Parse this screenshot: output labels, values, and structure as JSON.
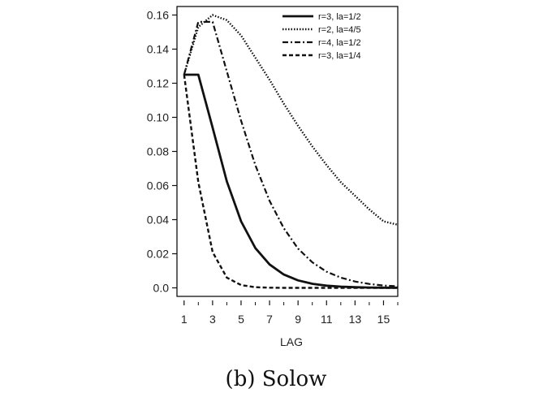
{
  "caption": "(b) Solow",
  "chart_data": {
    "type": "line",
    "xlabel": "LAG",
    "ylabel": "",
    "xlim": [
      0.5,
      16
    ],
    "ylim": [
      -0.005,
      0.165
    ],
    "x_ticks": [
      "1",
      "3",
      "5",
      "7",
      "9",
      "11",
      "13",
      "15"
    ],
    "x_tick_values": [
      1,
      3,
      5,
      7,
      9,
      11,
      13,
      15
    ],
    "minor_x_ticks": [
      2,
      4,
      6,
      8,
      10,
      12,
      14,
      16
    ],
    "y_ticks": [
      "0.0",
      "0.02",
      "0.04",
      "0.06",
      "0.08",
      "0.10",
      "0.12",
      "0.14",
      "0.16"
    ],
    "y_tick_values": [
      0.0,
      0.02,
      0.04,
      0.06,
      0.08,
      0.1,
      0.12,
      0.14,
      0.16
    ],
    "grid": false,
    "legend_position": "top-right",
    "series": [
      {
        "name": "r=3, la=1/2",
        "style": "solid",
        "x": [
          1,
          2,
          3,
          4,
          5,
          6,
          7,
          8,
          9,
          10,
          11,
          12,
          13,
          14,
          15,
          16
        ],
        "y": [
          0.125,
          0.125,
          0.094,
          0.0625,
          0.039,
          0.0234,
          0.0137,
          0.0078,
          0.0044,
          0.0024,
          0.0013,
          0.0007,
          0.0004,
          0.0002,
          0.0001,
          0.0001
        ]
      },
      {
        "name": "r=2, la=4/5",
        "style": "dotted",
        "x": [
          1,
          2,
          3,
          4,
          5,
          6,
          7,
          8,
          9,
          10,
          11,
          12,
          13,
          14,
          15,
          16
        ],
        "y": [
          0.125,
          0.153,
          0.16,
          0.157,
          0.148,
          0.135,
          0.122,
          0.108,
          0.095,
          0.083,
          0.072,
          0.062,
          0.054,
          0.046,
          0.039,
          0.037
        ]
      },
      {
        "name": "r=4, la=1/2",
        "style": "dashdot",
        "x": [
          1,
          2,
          3,
          4,
          5,
          6,
          7,
          8,
          9,
          10,
          11,
          12,
          13,
          14,
          15,
          16
        ],
        "y": [
          0.125,
          0.156,
          0.156,
          0.127,
          0.098,
          0.072,
          0.051,
          0.035,
          0.023,
          0.015,
          0.0095,
          0.006,
          0.0037,
          0.0023,
          0.0014,
          0.0009
        ]
      },
      {
        "name": "r=3, la=1/4",
        "style": "dashed",
        "x": [
          1,
          2,
          3,
          4,
          5,
          6,
          7,
          8,
          9,
          10,
          11,
          12,
          13,
          14,
          15,
          16
        ],
        "y": [
          0.125,
          0.062,
          0.021,
          0.006,
          0.0016,
          0.0004,
          0.0001,
          0.0,
          0.0,
          0.0,
          0.0,
          0.0,
          0.0,
          0.0,
          0.0,
          0.0
        ]
      }
    ]
  }
}
